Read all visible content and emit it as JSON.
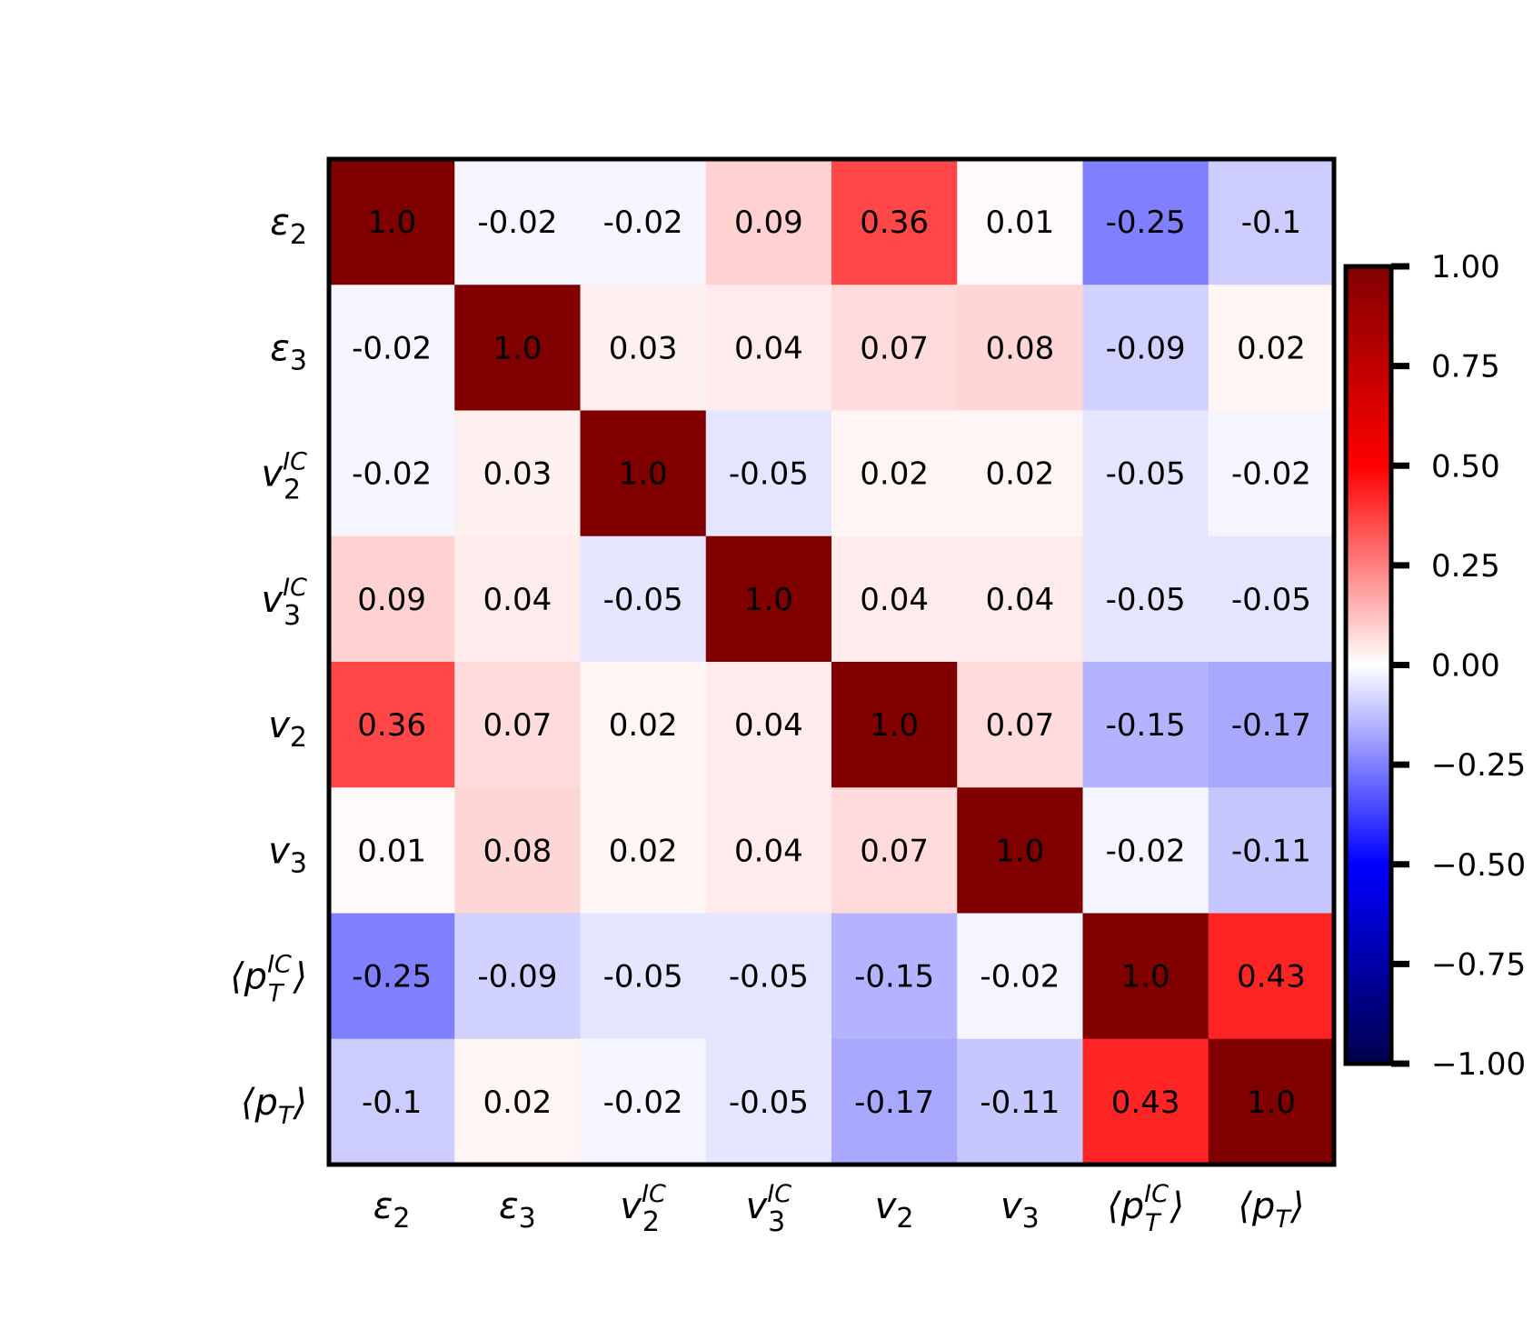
{
  "chart_data": {
    "type": "heatmap",
    "title": "",
    "xlabel": "",
    "ylabel": "",
    "labels": [
      {
        "base": "ε",
        "sub": "2",
        "sup": ""
      },
      {
        "base": "ε",
        "sub": "3",
        "sup": ""
      },
      {
        "base": "v",
        "sub": "2",
        "sup": "IC"
      },
      {
        "base": "v",
        "sub": "3",
        "sup": "IC"
      },
      {
        "base": "v",
        "sub": "2",
        "sup": ""
      },
      {
        "base": "v",
        "sub": "3",
        "sup": ""
      },
      {
        "base": "⟨p",
        "sub": "T",
        "sup": "IC",
        "close": "⟩"
      },
      {
        "base": "⟨p",
        "sub": "T",
        "sup": "",
        "close": "⟩"
      }
    ],
    "matrix": [
      [
        1.0,
        -0.02,
        -0.02,
        0.09,
        0.36,
        0.01,
        -0.25,
        -0.1
      ],
      [
        -0.02,
        1.0,
        0.03,
        0.04,
        0.07,
        0.08,
        -0.09,
        0.02
      ],
      [
        -0.02,
        0.03,
        1.0,
        -0.05,
        0.02,
        0.02,
        -0.05,
        -0.02
      ],
      [
        0.09,
        0.04,
        -0.05,
        1.0,
        0.04,
        0.04,
        -0.05,
        -0.05
      ],
      [
        0.36,
        0.07,
        0.02,
        0.04,
        1.0,
        0.07,
        -0.15,
        -0.17
      ],
      [
        0.01,
        0.08,
        0.02,
        0.04,
        0.07,
        1.0,
        -0.02,
        -0.11
      ],
      [
        -0.25,
        -0.09,
        -0.05,
        -0.05,
        -0.15,
        -0.02,
        1.0,
        0.43
      ],
      [
        -0.1,
        0.02,
        -0.02,
        -0.05,
        -0.17,
        -0.11,
        0.43,
        1.0
      ]
    ],
    "annotations": [
      [
        "1.0",
        "-0.02",
        "-0.02",
        "0.09",
        "0.36",
        "0.01",
        "-0.25",
        "-0.1"
      ],
      [
        "-0.02",
        "1.0",
        "0.03",
        "0.04",
        "0.07",
        "0.08",
        "-0.09",
        "0.02"
      ],
      [
        "-0.02",
        "0.03",
        "1.0",
        "-0.05",
        "0.02",
        "0.02",
        "-0.05",
        "-0.02"
      ],
      [
        "0.09",
        "0.04",
        "-0.05",
        "1.0",
        "0.04",
        "0.04",
        "-0.05",
        "-0.05"
      ],
      [
        "0.36",
        "0.07",
        "0.02",
        "0.04",
        "1.0",
        "0.07",
        "-0.15",
        "-0.17"
      ],
      [
        "0.01",
        "0.08",
        "0.02",
        "0.04",
        "0.07",
        "1.0",
        "-0.02",
        "-0.11"
      ],
      [
        "-0.25",
        "-0.09",
        "-0.05",
        "-0.05",
        "-0.15",
        "-0.02",
        "1.0",
        "0.43"
      ],
      [
        "-0.1",
        "0.02",
        "-0.02",
        "-0.05",
        "-0.17",
        "-0.11",
        "0.43",
        "1.0"
      ]
    ],
    "colorscale": "seismic",
    "vmin": -1.0,
    "vmax": 1.0,
    "colorbar_ticks": [
      "1.00",
      "0.75",
      "0.50",
      "0.25",
      "0.00",
      "−0.25",
      "−0.50",
      "−0.75",
      "−1.00"
    ],
    "colorbar_tick_values": [
      1.0,
      0.75,
      0.5,
      0.25,
      0.0,
      -0.25,
      -0.5,
      -0.75,
      -1.0
    ],
    "colorbar_placement": "right",
    "grid": false
  }
}
